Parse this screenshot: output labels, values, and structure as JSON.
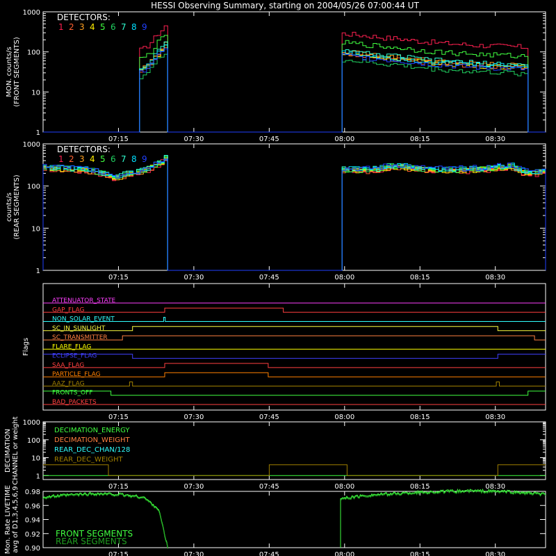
{
  "title": "HESSI Observing Summary, starting on 2004/05/26 07:00:44 UT",
  "colors": {
    "det": [
      "#ff2050",
      "#ff6030",
      "#ffa020",
      "#ffee00",
      "#40ff40",
      "#20d060",
      "#30ffd0",
      "#00e0ff",
      "#2040ff"
    ],
    "axis": "#ffffff",
    "background": "#000000"
  },
  "time_ticks": [
    "07:15",
    "07:30",
    "07:45",
    "08:00",
    "08:15",
    "08:30"
  ],
  "chart_data": [
    {
      "type": "line",
      "name": "front",
      "ylabel": [
        "MON. counts/s",
        "(FRONT SEGMENTS)"
      ],
      "yscale": "log",
      "ylim": [
        1,
        1000
      ],
      "yticks": [
        "1",
        "10",
        "100",
        "1000"
      ],
      "legend_title": "DETECTORS:",
      "legend_items": [
        "1",
        "2",
        "3",
        "4",
        "5",
        "6",
        "7",
        "8",
        "9"
      ],
      "x_unit": "minutes after 07:00",
      "segments": [
        {
          "x0": 19.2,
          "x1": 24.8,
          "base": [
            35,
            38,
            45,
            55,
            70,
            90,
            110,
            140,
            180
          ]
        },
        {
          "x0": 59.5,
          "x1": 96.5,
          "base": [
            90,
            85,
            80,
            75,
            70,
            68,
            62,
            58,
            55,
            52,
            50,
            48,
            46,
            45,
            44,
            43,
            42,
            40
          ]
        }
      ],
      "det_factor": [
        3.2,
        1.0,
        1.1,
        1.0,
        1.9,
        0.7,
        1.15,
        1.05,
        0.9
      ]
    },
    {
      "type": "line",
      "name": "rear",
      "ylabel": [
        "counts/s",
        "(REAR SEGMENTS)"
      ],
      "yscale": "log",
      "ylim": [
        1,
        1000
      ],
      "yticks": [
        "1",
        "10",
        "100",
        "1000"
      ],
      "legend_title": "DETECTORS:",
      "legend_items": [
        "1",
        "2",
        "3",
        "4",
        "5",
        "6",
        "7",
        "8",
        "9"
      ],
      "segments": [
        {
          "x0": 0,
          "x1": 24.8,
          "base": [
            280,
            270,
            260,
            250,
            240,
            220,
            190,
            160,
            200,
            210,
            260,
            350,
            500
          ]
        },
        {
          "x0": 59.5,
          "x1": 100,
          "base": [
            240,
            245,
            240,
            250,
            300,
            290,
            260,
            250,
            245,
            240,
            245,
            250,
            260,
            280,
            300,
            220,
            210,
            220
          ]
        }
      ]
    },
    {
      "type": "step",
      "name": "flags",
      "ylabel": "Flags",
      "items": [
        {
          "label": "ATTENUATOR_STATE",
          "color": "#ff40ff",
          "steps": []
        },
        {
          "label": "GAP_FLAG",
          "color": "#ff4040",
          "steps": [
            [
              24.2,
              1
            ],
            [
              47.8,
              0
            ]
          ]
        },
        {
          "label": "NON_SOLAR_EVENT",
          "color": "#30ffff",
          "steps": [
            [
              24.0,
              1
            ],
            [
              24.3,
              0
            ]
          ]
        },
        {
          "label": "SC_IN_SUNLIGHT",
          "color": "#ffff40",
          "steps": [
            [
              0,
              0
            ],
            [
              17.8,
              1
            ],
            [
              90.5,
              0
            ]
          ]
        },
        {
          "label": "SC_TRANSMITTER",
          "color": "#ff8040",
          "steps": [
            [
              0,
              0
            ],
            [
              15.8,
              1
            ],
            [
              97.8,
              0
            ]
          ]
        },
        {
          "label": "FLARE_FLAG",
          "color": "#ffff00",
          "steps": []
        },
        {
          "label": "ECLIPSE_FLAG",
          "color": "#4040ff",
          "steps": [
            [
              0,
              1
            ],
            [
              17.8,
              0
            ],
            [
              90.5,
              1
            ]
          ]
        },
        {
          "label": "SAA_FLAG",
          "color": "#ff4040",
          "steps": [
            [
              24.2,
              1
            ],
            [
              44.8,
              0
            ]
          ]
        },
        {
          "label": "PARTICLE_FLAG",
          "color": "#ff8000",
          "steps": [
            [
              24.2,
              1
            ],
            [
              44.8,
              0
            ]
          ]
        },
        {
          "label": "AAZ_FLAG",
          "color": "#a08000",
          "steps": [
            [
              17.2,
              1
            ],
            [
              17.8,
              0
            ],
            [
              90.2,
              1
            ],
            [
              90.8,
              0
            ]
          ]
        },
        {
          "label": "FRONTS_OFF",
          "color": "#40ff40",
          "steps": [
            [
              0,
              1
            ],
            [
              13.5,
              0
            ],
            [
              96.5,
              1
            ]
          ]
        },
        {
          "label": "BAD_PACKETS",
          "color": "#ff4040",
          "steps": []
        }
      ]
    },
    {
      "type": "step",
      "name": "decimation",
      "ylabel": [
        "DECIMATION",
        "CHANNEL or weight"
      ],
      "yscale": "log",
      "ylim": [
        0.6,
        1000
      ],
      "yticks": [
        "1",
        "10",
        "100",
        "1000"
      ],
      "legend": [
        {
          "label": "DECIMATION_ENERGY",
          "color": "#40ff40"
        },
        {
          "label": "DECIMATION_WEIGHT",
          "color": "#ff8040"
        },
        {
          "label": "REAR_DEC_CHAN/128",
          "color": "#30ffff"
        },
        {
          "label": "REAR_DEC_WEIGHT",
          "color": "#a08000"
        }
      ],
      "weight_steps": [
        [
          0,
          4
        ],
        [
          13.0,
          1
        ],
        [
          45.0,
          4
        ],
        [
          60.5,
          1
        ],
        [
          90.5,
          4
        ]
      ]
    },
    {
      "type": "line",
      "name": "livetime",
      "ylabel": [
        "Mon. Rate LIVETIME",
        "avg of D1,3,4,5,6,9"
      ],
      "ylim": [
        0.9,
        0.98
      ],
      "yticks": [
        "0.90",
        "0.92",
        "0.94",
        "0.96",
        "0.98"
      ],
      "legend": [
        {
          "label": "FRONT SEGMENTS",
          "color": "#40ff40"
        },
        {
          "label": "REAR SEGMENTS",
          "color": "#20a020"
        }
      ],
      "segments": [
        {
          "x0": 0,
          "x1": 24.8,
          "points": [
            [
              0,
              0.972
            ],
            [
              5,
              0.975
            ],
            [
              10,
              0.977
            ],
            [
              15,
              0.976
            ],
            [
              20,
              0.972
            ],
            [
              23,
              0.955
            ],
            [
              24.8,
              0.9
            ]
          ]
        },
        {
          "x0": 59.2,
          "x1": 100,
          "points": [
            [
              59.2,
              0.97
            ],
            [
              65,
              0.975
            ],
            [
              75,
              0.979
            ],
            [
              85,
              0.981
            ],
            [
              92,
              0.98
            ],
            [
              100,
              0.976
            ]
          ]
        }
      ]
    }
  ]
}
